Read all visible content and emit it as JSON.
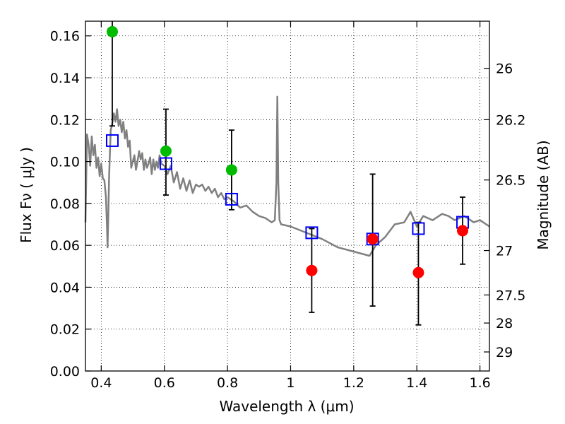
{
  "chart_data": {
    "type": "scatter",
    "xlabel": "Wavelength  λ (μm)",
    "ylabel": "Flux  Fν  ( μJy )",
    "ylabel_right": "Magnitude (AB)",
    "xlim": [
      0.35,
      1.63
    ],
    "ylim": [
      0.0,
      0.167
    ],
    "x_ticks": [
      0.4,
      0.6,
      0.8,
      1.0,
      1.2,
      1.4,
      1.6
    ],
    "x_tick_labels": [
      "0.4",
      "0.6",
      "0.8",
      "1",
      "1.2",
      "1.4",
      "1.6"
    ],
    "y_ticks": [
      0.0,
      0.02,
      0.04,
      0.06,
      0.08,
      0.1,
      0.12,
      0.14,
      0.16
    ],
    "y_tick_labels": [
      "0.00",
      "0.02",
      "0.04",
      "0.06",
      "0.08",
      "0.10",
      "0.12",
      "0.14",
      "0.16"
    ],
    "right_ticks": [
      {
        "flux": 0.1445,
        "label": "26"
      },
      {
        "flux": 0.12,
        "label": "26.2"
      },
      {
        "flux": 0.0912,
        "label": "26.5"
      },
      {
        "flux": 0.0575,
        "label": "27"
      },
      {
        "flux": 0.0363,
        "label": "27.5"
      },
      {
        "flux": 0.0229,
        "label": "28"
      },
      {
        "flux": 0.0091,
        "label": "29"
      }
    ],
    "grid": true,
    "series": [
      {
        "kind": "model_spectrum",
        "color": "#808080",
        "x": [
          0.35,
          0.355,
          0.36,
          0.365,
          0.37,
          0.375,
          0.38,
          0.385,
          0.39,
          0.395,
          0.4,
          0.405,
          0.41,
          0.415,
          0.418,
          0.42,
          0.422,
          0.425,
          0.43,
          0.435,
          0.44,
          0.445,
          0.45,
          0.455,
          0.46,
          0.465,
          0.47,
          0.475,
          0.48,
          0.485,
          0.49,
          0.495,
          0.5,
          0.505,
          0.51,
          0.515,
          0.52,
          0.525,
          0.53,
          0.535,
          0.54,
          0.545,
          0.55,
          0.555,
          0.56,
          0.565,
          0.57,
          0.575,
          0.58,
          0.585,
          0.59,
          0.6,
          0.61,
          0.62,
          0.63,
          0.64,
          0.65,
          0.66,
          0.67,
          0.68,
          0.69,
          0.7,
          0.71,
          0.72,
          0.73,
          0.74,
          0.75,
          0.76,
          0.77,
          0.78,
          0.79,
          0.8,
          0.82,
          0.84,
          0.86,
          0.88,
          0.9,
          0.92,
          0.94,
          0.95,
          0.955,
          0.958,
          0.961,
          0.965,
          0.97,
          1.0,
          1.05,
          1.1,
          1.15,
          1.2,
          1.25,
          1.27,
          1.3,
          1.33,
          1.36,
          1.38,
          1.4,
          1.42,
          1.45,
          1.48,
          1.5,
          1.52,
          1.55,
          1.58,
          1.6,
          1.63
        ],
        "y": [
          0.071,
          0.113,
          0.108,
          0.098,
          0.112,
          0.103,
          0.108,
          0.097,
          0.102,
          0.093,
          0.099,
          0.092,
          0.091,
          0.083,
          0.07,
          0.059,
          0.072,
          0.093,
          0.115,
          0.118,
          0.123,
          0.119,
          0.125,
          0.117,
          0.12,
          0.114,
          0.119,
          0.111,
          0.115,
          0.107,
          0.11,
          0.097,
          0.1,
          0.103,
          0.096,
          0.1,
          0.105,
          0.101,
          0.104,
          0.096,
          0.101,
          0.097,
          0.099,
          0.102,
          0.094,
          0.101,
          0.096,
          0.1,
          0.097,
          0.103,
          0.099,
          0.098,
          0.094,
          0.098,
          0.09,
          0.095,
          0.087,
          0.092,
          0.086,
          0.091,
          0.085,
          0.089,
          0.088,
          0.089,
          0.086,
          0.088,
          0.085,
          0.087,
          0.083,
          0.085,
          0.082,
          0.083,
          0.081,
          0.078,
          0.079,
          0.076,
          0.074,
          0.073,
          0.071,
          0.072,
          0.09,
          0.131,
          0.09,
          0.072,
          0.07,
          0.069,
          0.066,
          0.063,
          0.059,
          0.057,
          0.055,
          0.06,
          0.064,
          0.07,
          0.071,
          0.076,
          0.069,
          0.074,
          0.072,
          0.075,
          0.074,
          0.072,
          0.074,
          0.071,
          0.072,
          0.069
        ]
      },
      {
        "kind": "model_photometry",
        "marker": "open-square",
        "color": "#0000ff",
        "x": [
          0.435,
          0.605,
          0.813,
          1.067,
          1.26,
          1.405,
          1.545
        ],
        "y": [
          0.11,
          0.099,
          0.082,
          0.066,
          0.063,
          0.068,
          0.071
        ]
      },
      {
        "kind": "detections",
        "marker": "filled-circle",
        "color": "#00bb00",
        "x": [
          0.435,
          0.605,
          0.813
        ],
        "y": [
          0.162,
          0.105,
          0.096
        ]
      },
      {
        "kind": "non_detections",
        "marker": "filled-circle",
        "color": "#ff0000",
        "x": [
          1.067,
          1.26,
          1.405,
          1.545
        ],
        "y": [
          0.048,
          0.063,
          0.047,
          0.067
        ]
      }
    ],
    "error_bars": [
      {
        "x": 0.435,
        "ylow": 0.117,
        "yhigh": 0.167
      },
      {
        "x": 0.605,
        "ylow": 0.084,
        "yhigh": 0.125
      },
      {
        "x": 0.813,
        "ylow": 0.077,
        "yhigh": 0.115
      },
      {
        "x": 1.067,
        "ylow": 0.028,
        "yhigh": 0.068
      },
      {
        "x": 1.26,
        "ylow": 0.031,
        "yhigh": 0.094
      },
      {
        "x": 1.405,
        "ylow": 0.022,
        "yhigh": 0.071
      },
      {
        "x": 1.545,
        "ylow": 0.051,
        "yhigh": 0.083
      }
    ]
  }
}
